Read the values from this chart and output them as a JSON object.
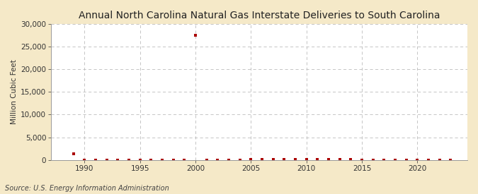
{
  "title": "Annual North Carolina Natural Gas Interstate Deliveries to South Carolina",
  "ylabel": "Million Cubic Feet",
  "source": "Source: U.S. Energy Information Administration",
  "background_color": "#f5e9c8",
  "plot_background": "#ffffff",
  "years": [
    1989,
    1990,
    1991,
    1992,
    1993,
    1994,
    1995,
    1996,
    1997,
    1998,
    1999,
    2000,
    2001,
    2002,
    2003,
    2004,
    2005,
    2006,
    2007,
    2008,
    2009,
    2010,
    2011,
    2012,
    2013,
    2014,
    2015,
    2016,
    2017,
    2018,
    2019,
    2020,
    2021,
    2022,
    2023
  ],
  "values": [
    1400,
    0,
    0,
    0,
    0,
    0,
    0,
    0,
    0,
    0,
    0,
    27500,
    0,
    0,
    0,
    0,
    30,
    50,
    80,
    70,
    60,
    50,
    40,
    30,
    20,
    10,
    0,
    0,
    0,
    0,
    0,
    0,
    0,
    0,
    0
  ],
  "marker_color": "#aa0000",
  "grid_color": "#bbbbbb",
  "ylim": [
    0,
    30000
  ],
  "yticks": [
    0,
    5000,
    10000,
    15000,
    20000,
    25000,
    30000
  ],
  "xlim": [
    1987.0,
    2024.5
  ],
  "xticks": [
    1990,
    1995,
    2000,
    2005,
    2010,
    2015,
    2020
  ],
  "title_fontsize": 10,
  "ylabel_fontsize": 7.5,
  "tick_fontsize": 7.5,
  "source_fontsize": 7
}
